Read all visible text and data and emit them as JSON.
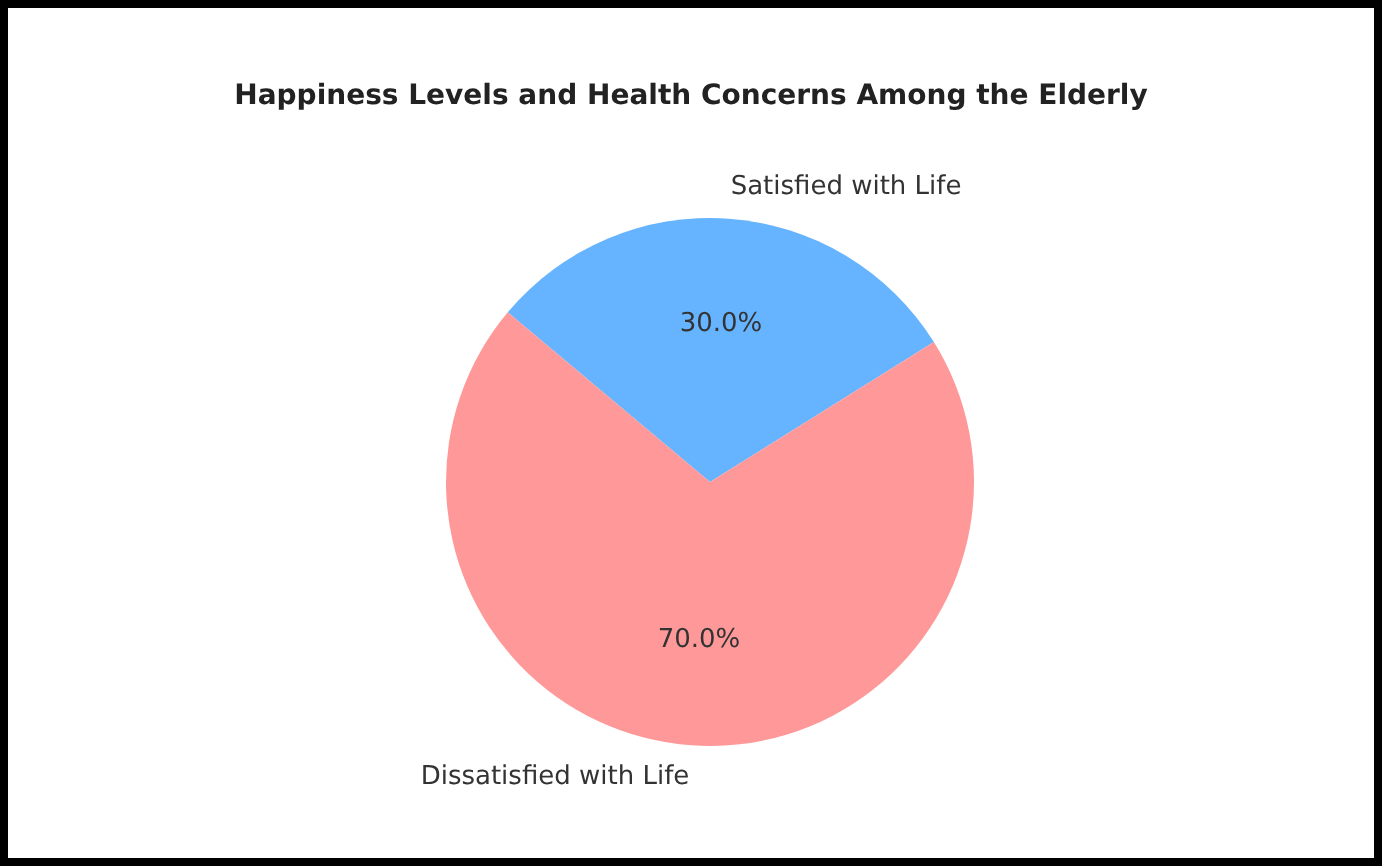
{
  "chart_data": {
    "type": "pie",
    "title": "Happiness Levels and Health Concerns Among the Elderly",
    "categories": [
      "Satisfied with Life",
      "Dissatisfied with Life"
    ],
    "values": [
      30,
      70
    ],
    "colors": [
      "#66b3ff",
      "#ff9999"
    ],
    "value_labels": [
      "30.0%",
      "70.0%"
    ],
    "legend": false
  }
}
